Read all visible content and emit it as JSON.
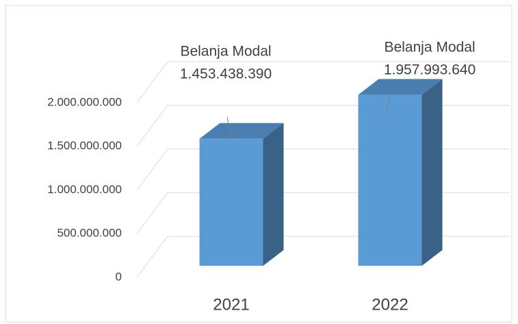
{
  "chart_data": {
    "type": "bar3d",
    "categories": [
      "2021",
      "2022"
    ],
    "series": [
      {
        "name": "Belanja Modal",
        "color": "#5b9bd5",
        "values": [
          1453438390,
          1957993640
        ],
        "value_labels": [
          "1.453.438.390",
          "1.957.993.640"
        ]
      }
    ],
    "ylim": [
      0,
      2000000000
    ],
    "yticks": [
      0,
      {
        "value": 500000000,
        "label": "500.000.000"
      },
      {
        "value": 1000000000,
        "label": "1.000.000.000"
      },
      {
        "value": 1500000000,
        "label": "1.500.000.000"
      },
      {
        "value": 2000000000,
        "label": "2.000.000.000"
      }
    ],
    "grid": true
  }
}
